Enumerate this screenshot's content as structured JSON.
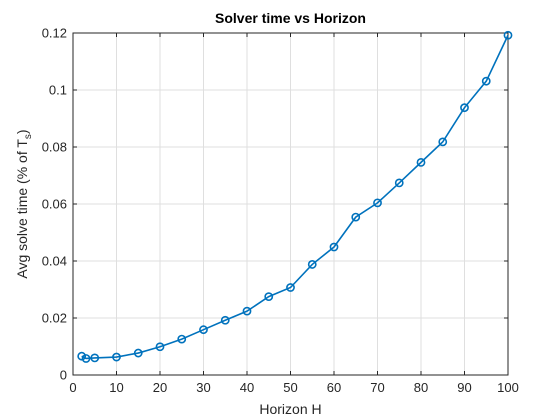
{
  "chart_data": {
    "type": "line",
    "title": "Solver time vs Horizon",
    "xlabel": "Horizon H",
    "ylabel_main": "Avg solve time (% of T",
    "ylabel_sub": "s",
    "ylabel_close": ")",
    "xlim": [
      0,
      100
    ],
    "ylim": [
      0,
      0.12
    ],
    "xticks": [
      0,
      10,
      20,
      30,
      40,
      50,
      60,
      70,
      80,
      90,
      100
    ],
    "xtick_labels": [
      "0",
      "10",
      "20",
      "30",
      "40",
      "50",
      "60",
      "70",
      "80",
      "90",
      "100"
    ],
    "yticks": [
      0,
      0.02,
      0.04,
      0.06,
      0.08,
      0.1,
      0.12
    ],
    "ytick_labels": [
      "0",
      "0.02",
      "0.04",
      "0.06",
      "0.08",
      "0.1",
      "0.12"
    ],
    "grid": true,
    "series": [
      {
        "color": "#0072bd",
        "marker": "circle",
        "x": [
          2,
          3,
          5,
          10,
          15,
          20,
          25,
          30,
          35,
          40,
          45,
          50,
          55,
          60,
          65,
          70,
          75,
          80,
          85,
          90,
          95,
          100
        ],
        "y": [
          0.0066,
          0.0058,
          0.006,
          0.0063,
          0.0077,
          0.0099,
          0.0126,
          0.0159,
          0.0192,
          0.0224,
          0.0275,
          0.0307,
          0.0388,
          0.0449,
          0.0554,
          0.0604,
          0.0674,
          0.0746,
          0.0818,
          0.0938,
          0.1031,
          0.1192
        ]
      }
    ]
  }
}
